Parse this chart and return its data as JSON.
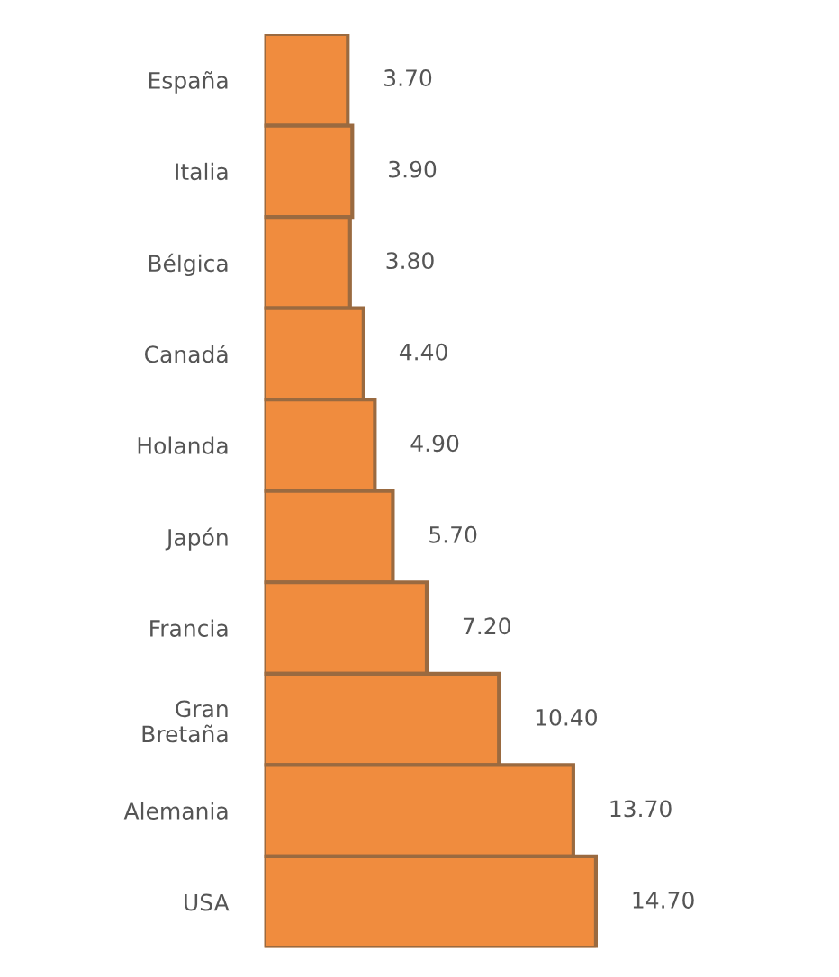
{
  "chart_data": {
    "type": "bar",
    "orientation": "horizontal",
    "categories": [
      "España",
      "Italia",
      "Bélgica",
      "Canadá",
      "Holanda",
      "Japón",
      "Francia",
      "Gran\nBretaña",
      "Alemania",
      "USA"
    ],
    "values": [
      3.7,
      3.9,
      3.8,
      4.4,
      4.9,
      5.7,
      7.2,
      10.4,
      13.7,
      14.7
    ],
    "value_labels": [
      "3.70",
      "3.90",
      "3.80",
      "4.40",
      "4.90",
      "5.70",
      "7.20",
      "10.40",
      "13.70",
      "14.70"
    ],
    "color": "#f08c3e",
    "tick_labels": "y",
    "grid": false
  }
}
